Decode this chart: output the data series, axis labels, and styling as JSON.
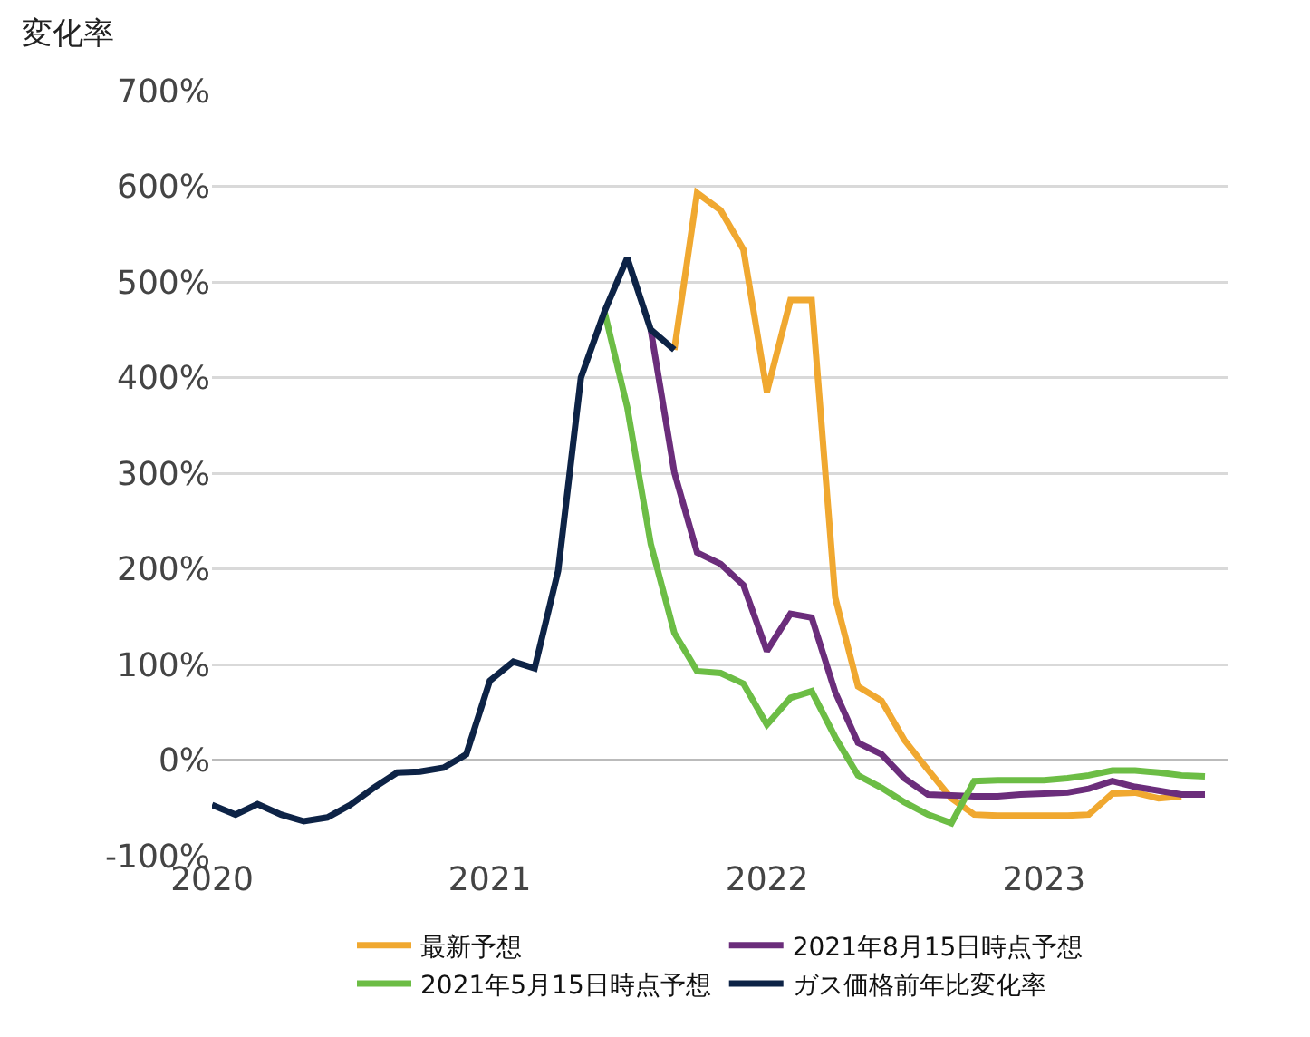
{
  "chart_data": {
    "type": "line",
    "ylabel": "変化率",
    "x": [
      "2020-01",
      "2020-02",
      "2020-03",
      "2020-04",
      "2020-05",
      "2020-06",
      "2020-07",
      "2020-08",
      "2020-09",
      "2020-10",
      "2020-11",
      "2020-12",
      "2021-01",
      "2021-02",
      "2021-03",
      "2021-04",
      "2021-05",
      "2021-06",
      "2021-07",
      "2021-08",
      "2021-09",
      "2021-10",
      "2021-11",
      "2021-12",
      "2022-01",
      "2022-02",
      "2022-03",
      "2022-04",
      "2022-05",
      "2022-06",
      "2022-07",
      "2022-08",
      "2022-09",
      "2022-10",
      "2022-11",
      "2022-12",
      "2023-01",
      "2023-02",
      "2023-03",
      "2023-04",
      "2023-05",
      "2023-06",
      "2023-07",
      "2023-08"
    ],
    "series": [
      {
        "name": "最新予想",
        "color": "#f0a830",
        "values": [
          null,
          null,
          null,
          null,
          null,
          null,
          null,
          null,
          null,
          null,
          null,
          null,
          null,
          null,
          null,
          null,
          null,
          null,
          null,
          null,
          429,
          593,
          575,
          534,
          385,
          481,
          481,
          170,
          77,
          62,
          21,
          -10,
          -40,
          -57,
          -58,
          -58,
          -58,
          -58,
          -57,
          -35,
          -34,
          -40,
          -38,
          null
        ]
      },
      {
        "name": "2021年8月15日時点予想",
        "color": "#6b2d7b",
        "values": [
          null,
          null,
          null,
          null,
          null,
          null,
          null,
          null,
          null,
          null,
          null,
          null,
          null,
          null,
          null,
          null,
          null,
          null,
          null,
          450,
          301,
          217,
          205,
          183,
          114,
          153,
          149,
          71,
          18,
          6,
          -19,
          -36,
          -37,
          -38,
          -38,
          -36,
          -35,
          -34,
          -30,
          -22,
          -28,
          -32,
          -36,
          -36
        ]
      },
      {
        "name": "2021年5月15日時点予想",
        "color": "#6cbd45",
        "values": [
          null,
          null,
          null,
          null,
          null,
          null,
          null,
          null,
          null,
          null,
          null,
          null,
          null,
          null,
          null,
          null,
          null,
          469,
          369,
          226,
          133,
          93,
          91,
          80,
          37,
          65,
          72,
          24,
          -16,
          -29,
          -44,
          -57,
          -66,
          -22,
          -21,
          -21,
          -21,
          -19,
          -16,
          -11,
          -11,
          -13,
          -16,
          -17
        ]
      },
      {
        "name": "ガス価格前年比変化率",
        "color": "#0d2346",
        "values": [
          -47,
          -57,
          -46,
          -57,
          -64,
          -60,
          -47,
          -29,
          -13,
          -12,
          -8,
          6,
          83,
          103,
          96,
          198,
          400,
          469,
          525,
          450,
          429,
          null,
          null,
          null,
          null,
          null,
          null,
          null,
          null,
          null,
          null,
          null,
          null,
          null,
          null,
          null,
          null,
          null,
          null,
          null,
          null,
          null,
          null,
          null
        ]
      }
    ],
    "xlim": [
      "2020-01",
      "2023-09"
    ],
    "xticks": [
      {
        "value": "2020-01",
        "label": "2020"
      },
      {
        "value": "2021-01",
        "label": "2021"
      },
      {
        "value": "2022-01",
        "label": "2022"
      },
      {
        "value": "2023-01",
        "label": "2023"
      }
    ],
    "ylim": [
      -100,
      700
    ],
    "yticks": [
      {
        "value": -100,
        "label": "-100%"
      },
      {
        "value": 0,
        "label": "0%"
      },
      {
        "value": 100,
        "label": "100%"
      },
      {
        "value": 200,
        "label": "200%"
      },
      {
        "value": 300,
        "label": "300%"
      },
      {
        "value": 400,
        "label": "400%"
      },
      {
        "value": 500,
        "label": "500%"
      },
      {
        "value": 600,
        "label": "600%"
      },
      {
        "value": 700,
        "label": "700%"
      }
    ],
    "grid": "y",
    "legend": "bottom",
    "marker": "none",
    "line_style": "solid"
  }
}
